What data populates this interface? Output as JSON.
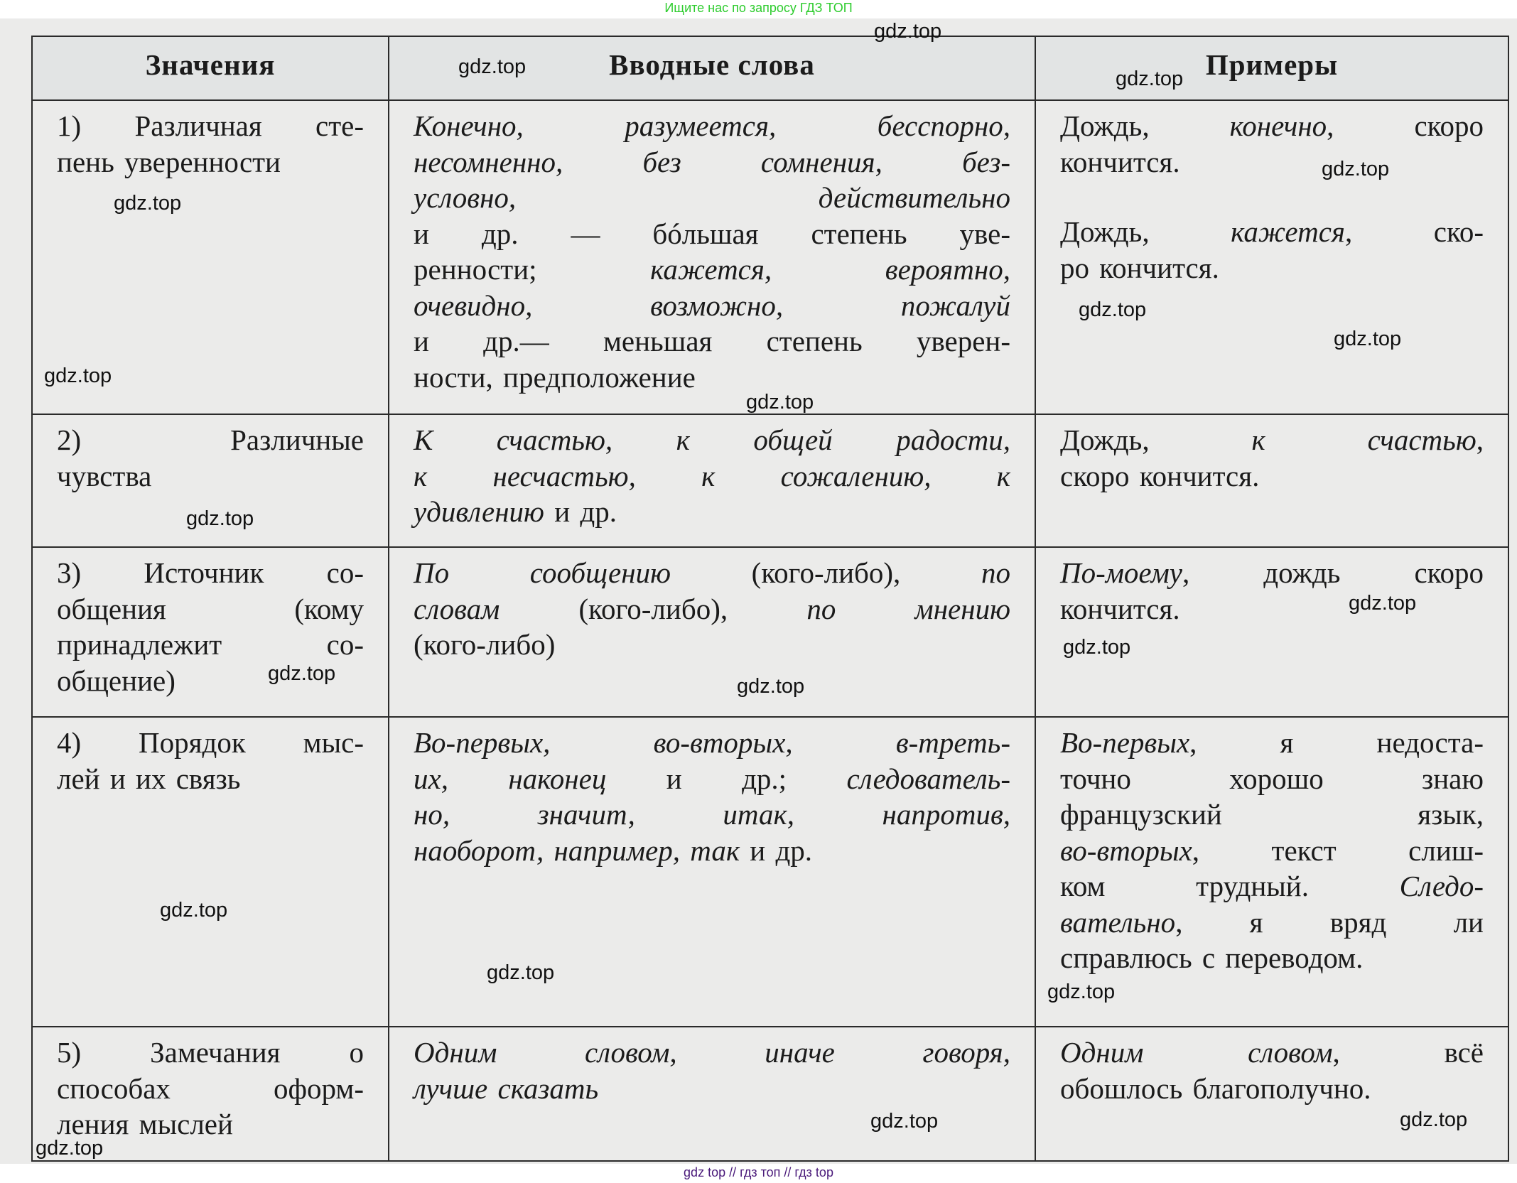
{
  "banner_top": "Ищите нас по запросу ГДЗ ТОП",
  "banner_bottom": "gdz top  //  гдз топ  //  гдз top",
  "watermark": "gdz.top",
  "headers": [
    "Значения",
    "Вводные слова",
    "Примеры"
  ],
  "rows": [
    [
      [
        [
          [
            {
              "t": "1) Различная сте-"
            }
          ],
          [
            {
              "t": "пень уверенности"
            }
          ]
        ]
      ],
      [
        [
          [
            {
              "t": "Конечно, разумеется, бесспорно,",
              "i": true
            }
          ],
          [
            {
              "t": "несомненно, без сомнения, без-",
              "i": true
            }
          ],
          [
            {
              "t": "условно, действительно",
              "i": true
            }
          ],
          [
            {
              "t": "и др. — бóльшая степень уве-"
            }
          ],
          [
            {
              "t": "ренности; "
            },
            {
              "t": "кажется, вероятно,",
              "i": true
            }
          ],
          [
            {
              "t": "очевидно, возможно, пожалуй",
              "i": true
            }
          ],
          [
            {
              "t": "и др.— меньшая степень уверен-"
            }
          ],
          [
            {
              "t": "ности, предположение"
            }
          ]
        ]
      ],
      [
        [
          [
            {
              "t": "Дождь, "
            },
            {
              "t": "конечно",
              "i": true
            },
            {
              "t": ", скоро"
            }
          ],
          [
            {
              "t": "кончится."
            }
          ]
        ],
        [
          [
            {
              "t": "Дождь, "
            },
            {
              "t": "кажется",
              "i": true
            },
            {
              "t": ", ско-"
            }
          ],
          [
            {
              "t": "ро кончится."
            }
          ]
        ]
      ]
    ],
    [
      [
        [
          [
            {
              "t": "2) Различные"
            }
          ],
          [
            {
              "t": "чувства"
            }
          ]
        ]
      ],
      [
        [
          [
            {
              "t": "К счастью, к общей радости,",
              "i": true
            }
          ],
          [
            {
              "t": "к несчастью, к сожалению, к",
              "i": true
            }
          ],
          [
            {
              "t": "удивлению",
              "i": true
            },
            {
              "t": " и др."
            }
          ]
        ]
      ],
      [
        [
          [
            {
              "t": "Дождь, "
            },
            {
              "t": "к счастью",
              "i": true
            },
            {
              "t": ","
            }
          ],
          [
            {
              "t": "скоро кончится."
            }
          ]
        ]
      ]
    ],
    [
      [
        [
          [
            {
              "t": "3) Источник со-"
            }
          ],
          [
            {
              "t": "общения (кому"
            }
          ],
          [
            {
              "t": "принадлежит со-"
            }
          ],
          [
            {
              "t": "общение)"
            }
          ]
        ]
      ],
      [
        [
          [
            {
              "t": "По сообщению",
              "i": true
            },
            {
              "t": " (кого-либо), "
            },
            {
              "t": "по",
              "i": true
            }
          ],
          [
            {
              "t": "словам",
              "i": true
            },
            {
              "t": " (кого-либо), "
            },
            {
              "t": "по мнению",
              "i": true
            }
          ],
          [
            {
              "t": "(кого-либо)"
            }
          ]
        ]
      ],
      [
        [
          [
            {
              "t": "По-моему",
              "i": true
            },
            {
              "t": ", дождь скоро"
            }
          ],
          [
            {
              "t": "кончится."
            }
          ]
        ]
      ]
    ],
    [
      [
        [
          [
            {
              "t": "4) Порядок мыс-"
            }
          ],
          [
            {
              "t": "лей и их связь"
            }
          ]
        ]
      ],
      [
        [
          [
            {
              "t": "Во-первых, во-вторых, в-треть-",
              "i": true
            }
          ],
          [
            {
              "t": "их, наконец",
              "i": true
            },
            {
              "t": " и др.; "
            },
            {
              "t": "следователь-",
              "i": true
            }
          ],
          [
            {
              "t": "но, значит, итак, напротив,",
              "i": true
            }
          ],
          [
            {
              "t": "наоборот, например, так",
              "i": true
            },
            {
              "t": " и др."
            }
          ]
        ]
      ],
      [
        [
          [
            {
              "t": "Во-первых",
              "i": true
            },
            {
              "t": ", я недоста-"
            }
          ],
          [
            {
              "t": "точно хорошо знаю"
            }
          ],
          [
            {
              "t": "французский язык,"
            }
          ],
          [
            {
              "t": "во-вторых",
              "i": true
            },
            {
              "t": ", текст слиш-"
            }
          ],
          [
            {
              "t": "ком трудный. "
            },
            {
              "t": "Следо-",
              "i": true
            }
          ],
          [
            {
              "t": "вательно",
              "i": true
            },
            {
              "t": ", я вряд ли"
            }
          ],
          [
            {
              "t": "справлюсь с переводом."
            }
          ]
        ]
      ]
    ],
    [
      [
        [
          [
            {
              "t": "5) Замечания о"
            }
          ],
          [
            {
              "t": "способах оформ-"
            }
          ],
          [
            {
              "t": "ления мыслей"
            }
          ]
        ]
      ],
      [
        [
          [
            {
              "t": "Одним словом, иначе говоря,",
              "i": true
            }
          ],
          [
            {
              "t": "лучше сказать",
              "i": true
            }
          ]
        ]
      ],
      [
        [
          [
            {
              "t": "Одним словом",
              "i": true
            },
            {
              "t": ", всё"
            }
          ],
          [
            {
              "t": "обошлось благополучно."
            }
          ]
        ]
      ]
    ]
  ]
}
